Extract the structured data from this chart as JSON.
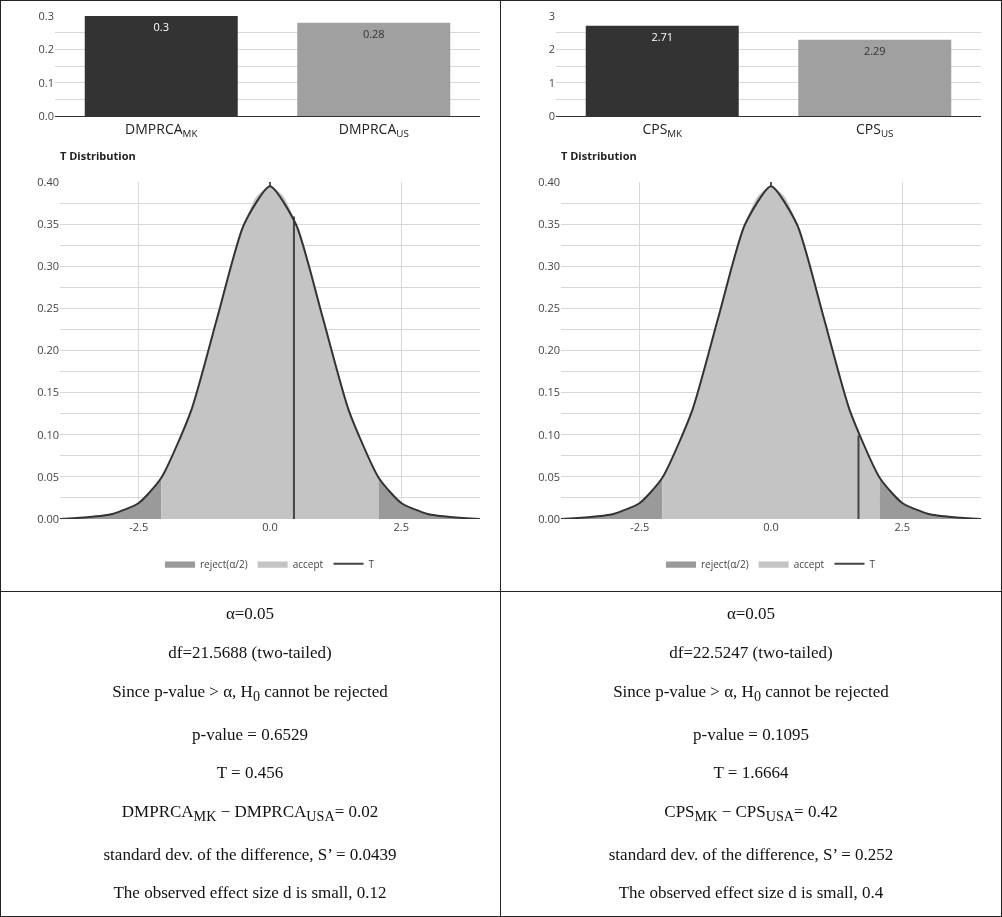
{
  "chart_data": [
    {
      "type": "bar",
      "categories": [
        "DMPRCA$_{MK}$",
        "DMPRCA$_{US}$"
      ],
      "values": [
        0.3,
        0.28
      ],
      "colors": [
        "#333333",
        "#a0a0a0"
      ],
      "data_labels": true,
      "ylim": [
        0,
        0.3
      ],
      "yticks": [
        {
          "value": 0,
          "label": "0.0"
        },
        {
          "value": 0.05,
          "label": null
        },
        0.1,
        {
          "value": 0.15,
          "label": null
        },
        0.2,
        {
          "value": 0.25,
          "label": null
        },
        0.3
      ],
      "grid": "y",
      "legend": false
    },
    {
      "type": "bar",
      "categories": [
        "CPS$_{MK}$",
        "CPS$_{US}$"
      ],
      "values": [
        2.71,
        2.29
      ],
      "colors": [
        "#333333",
        "#a0a0a0"
      ],
      "data_labels": true,
      "ylim": [
        0,
        3
      ],
      "yticks": [
        0,
        {
          "value": 0.5,
          "label": null
        },
        1,
        {
          "value": 1.5,
          "label": null
        },
        2,
        {
          "value": 2.5,
          "label": null
        },
        3
      ],
      "grid": "y",
      "legend": false
    },
    {
      "type": "area",
      "title": "T Distribution",
      "xlim": [
        -4,
        4
      ],
      "xticks": [
        {
          "value": -2.5,
          "label": "-2.5"
        },
        {
          "value": 0,
          "label": "0.0"
        },
        {
          "value": 2.5,
          "label": "2.5"
        }
      ],
      "ylim": [
        0,
        0.4
      ],
      "yticks": [
        {
          "value": 0,
          "label": "0.00"
        },
        {
          "value": 0.025,
          "label": null
        },
        {
          "value": 0.05,
          "label": "0.05"
        },
        {
          "value": 0.075,
          "label": null
        },
        {
          "value": 0.1,
          "label": "0.10"
        },
        {
          "value": 0.125,
          "label": null
        },
        {
          "value": 0.15,
          "label": "0.15"
        },
        {
          "value": 0.175,
          "label": null
        },
        {
          "value": 0.2,
          "label": "0.20"
        },
        {
          "value": 0.225,
          "label": null
        },
        {
          "value": 0.25,
          "label": "0.25"
        },
        {
          "value": 0.275,
          "label": null
        },
        {
          "value": 0.3,
          "label": "0.30"
        },
        {
          "value": 0.325,
          "label": null
        },
        {
          "value": 0.35,
          "label": "0.35"
        },
        {
          "value": 0.375,
          "label": null
        },
        {
          "value": 0.4,
          "label": "0.40"
        }
      ],
      "grid": true,
      "legend": "bottom",
      "series": [
        {
          "name": "reject(α/2)",
          "type": "area",
          "color": "#9a9a9a",
          "x": [
            -4,
            -3.75,
            -3.5,
            -3.25,
            -3,
            -2.75,
            -2.5,
            -2.25,
            -2.07
          ],
          "values": [
            0,
            0.001,
            0.002,
            0.003,
            0.006,
            0.011,
            0.019,
            0.033,
            0.049
          ]
        },
        {
          "name": "accept",
          "type": "area",
          "color": "#c4c4c4",
          "x": [
            -2.07,
            -2,
            -1.75,
            -1.5,
            -1.25,
            -1,
            -0.75,
            -0.5,
            -0.25,
            0,
            0.25,
            0.5,
            0.75,
            1,
            1.25,
            1.5,
            1.75,
            2,
            2.07
          ],
          "values": [
            0.049,
            0.055,
            0.087,
            0.129,
            0.181,
            0.24,
            0.299,
            0.349,
            0.383,
            0.395,
            0.383,
            0.349,
            0.299,
            0.24,
            0.181,
            0.129,
            0.087,
            0.055,
            0.049
          ]
        },
        {
          "name": "T",
          "type": "line",
          "color": "#444444",
          "x": [
            0.456,
            0.456
          ],
          "values": [
            0,
            0.359
          ]
        },
        {
          "type": "area",
          "color": "#9a9a9a",
          "x": [
            2.07,
            2.25,
            2.5,
            2.75,
            3,
            3.25,
            3.5,
            3.75,
            4
          ],
          "values": [
            0.049,
            0.033,
            0.019,
            0.011,
            0.006,
            0.003,
            0.002,
            0.001,
            0
          ]
        },
        {
          "type": "line",
          "color": "#333333",
          "x": [
            -4,
            -3.5,
            -3,
            -2.5,
            -2.07,
            -1.5,
            -1,
            -0.5,
            0,
            0.5,
            1,
            1.5,
            2.07,
            2.5,
            3,
            3.5,
            4
          ],
          "values": [
            0,
            0.002,
            0.006,
            0.019,
            0.049,
            0.129,
            0.24,
            0.349,
            0.395,
            0.349,
            0.24,
            0.129,
            0.049,
            0.019,
            0.006,
            0.002,
            0
          ]
        }
      ]
    },
    {
      "type": "area",
      "title": "T Distribution",
      "xlim": [
        -4,
        4
      ],
      "xticks": [
        {
          "value": -2.5,
          "label": "-2.5"
        },
        {
          "value": 0,
          "label": "0.0"
        },
        {
          "value": 2.5,
          "label": "2.5"
        }
      ],
      "ylim": [
        0,
        0.4
      ],
      "yticks": [
        {
          "value": 0,
          "label": "0.00"
        },
        {
          "value": 0.025,
          "label": null
        },
        {
          "value": 0.05,
          "label": "0.05"
        },
        {
          "value": 0.075,
          "label": null
        },
        {
          "value": 0.1,
          "label": "0.10"
        },
        {
          "value": 0.125,
          "label": null
        },
        {
          "value": 0.15,
          "label": "0.15"
        },
        {
          "value": 0.175,
          "label": null
        },
        {
          "value": 0.2,
          "label": "0.20"
        },
        {
          "value": 0.225,
          "label": null
        },
        {
          "value": 0.25,
          "label": "0.25"
        },
        {
          "value": 0.275,
          "label": null
        },
        {
          "value": 0.3,
          "label": "0.30"
        },
        {
          "value": 0.325,
          "label": null
        },
        {
          "value": 0.35,
          "label": "0.35"
        },
        {
          "value": 0.375,
          "label": null
        },
        {
          "value": 0.4,
          "label": "0.40"
        }
      ],
      "grid": true,
      "legend": "bottom",
      "series": [
        {
          "name": "reject(α/2)",
          "type": "area",
          "color": "#9a9a9a",
          "x": [
            -4,
            -3.75,
            -3.5,
            -3.25,
            -3,
            -2.75,
            -2.5,
            -2.25,
            -2.07
          ],
          "values": [
            0,
            0.001,
            0.002,
            0.003,
            0.006,
            0.011,
            0.019,
            0.033,
            0.049
          ]
        },
        {
          "name": "accept",
          "type": "area",
          "color": "#c4c4c4",
          "x": [
            -2.07,
            -2,
            -1.75,
            -1.5,
            -1.25,
            -1,
            -0.75,
            -0.5,
            -0.25,
            0,
            0.25,
            0.5,
            0.75,
            1,
            1.25,
            1.5,
            1.75,
            2,
            2.07
          ],
          "values": [
            0.049,
            0.055,
            0.087,
            0.129,
            0.181,
            0.24,
            0.299,
            0.349,
            0.383,
            0.395,
            0.383,
            0.349,
            0.299,
            0.24,
            0.181,
            0.129,
            0.087,
            0.055,
            0.049
          ]
        },
        {
          "name": "T",
          "type": "line",
          "color": "#444444",
          "x": [
            1.6664,
            1.6664
          ],
          "values": [
            0,
            0.099
          ]
        },
        {
          "type": "area",
          "color": "#9a9a9a",
          "x": [
            2.07,
            2.25,
            2.5,
            2.75,
            3,
            3.25,
            3.5,
            3.75,
            4
          ],
          "values": [
            0.049,
            0.033,
            0.019,
            0.011,
            0.006,
            0.003,
            0.002,
            0.001,
            0
          ]
        },
        {
          "type": "line",
          "color": "#333333",
          "x": [
            -4,
            -3.5,
            -3,
            -2.5,
            -2.07,
            -1.5,
            -1,
            -0.5,
            0,
            0.5,
            1,
            1.5,
            2.07,
            2.5,
            3,
            3.5,
            4
          ],
          "values": [
            0,
            0.002,
            0.006,
            0.019,
            0.049,
            0.129,
            0.24,
            0.349,
            0.395,
            0.349,
            0.24,
            0.129,
            0.049,
            0.019,
            0.006,
            0.002,
            0
          ]
        }
      ]
    },
    {
      "type": "other",
      "annotations": [
        "α=0.05",
        "df=21.5688 (two-tailed)",
        "Since p-value > α, H$_{0}$ cannot be rejected",
        "p-value = 0.6529",
        "T = 0.456",
        "DMPRCA$_{MK}$ − DMPRCA$_{USA}$= 0.02",
        "standard dev. of the difference, S’ = 0.0439",
        "The observed effect size d is small, 0.12"
      ]
    },
    {
      "type": "other",
      "annotations": [
        "α=0.05",
        "df=22.5247 (two-tailed)",
        "Since p-value > α, H$_{0}$ cannot be rejected",
        "p-value = 0.1095",
        "T = 1.6664",
        "CPS$_{MK}$ − CPS$_{USA}$= 0.42",
        "standard dev. of the difference, S’ = 0.252",
        "The observed effect size d is small, 0.4"
      ]
    }
  ]
}
